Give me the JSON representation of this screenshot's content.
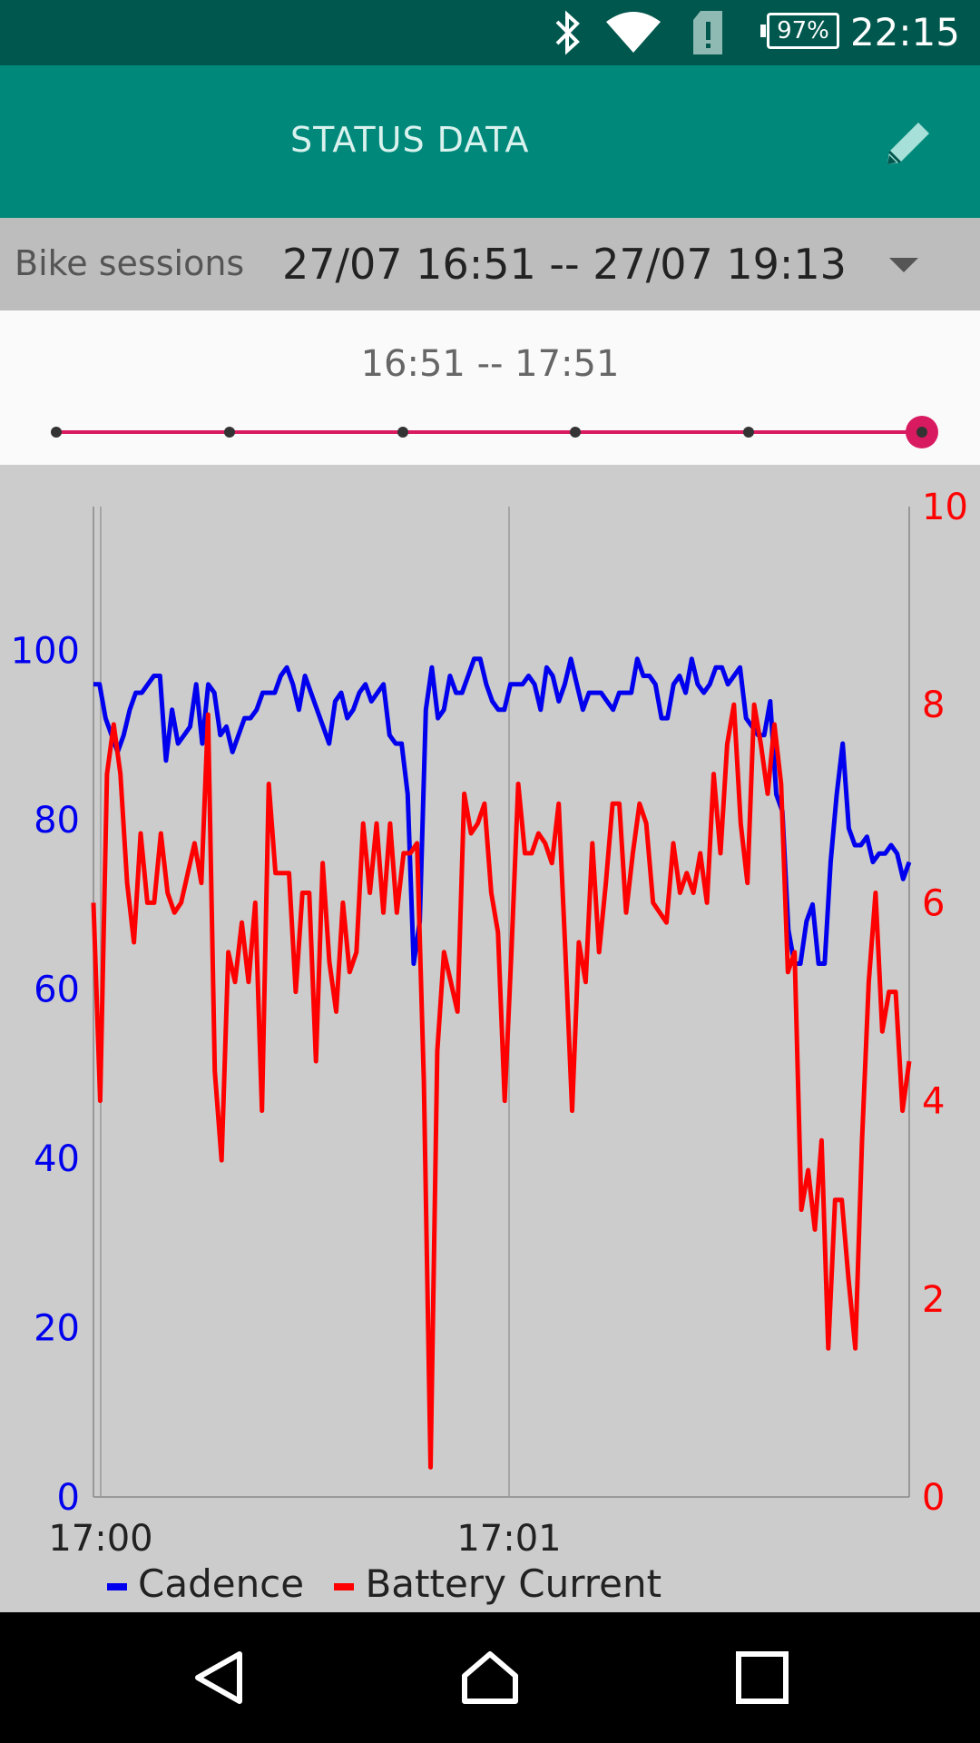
{
  "status_bar": {
    "time": "22:15",
    "battery": "97%",
    "icons": [
      "bluetooth-icon",
      "wifi-icon",
      "sim-alert-icon",
      "battery-icon"
    ]
  },
  "app_bar": {
    "title": "STATUS DATA",
    "edit_icon": "pencil-icon"
  },
  "session_selector": {
    "label": "Bike sessions",
    "value": "27/07 16:51 -- 27/07 19:13"
  },
  "range": {
    "text": "16:51  --  17:51",
    "selected_fraction": 1.0
  },
  "legend": {
    "cadence": "Cadence",
    "battery_current": "Battery Current"
  },
  "colors": {
    "cadence": "#0000ee",
    "battery_current": "#ff0000",
    "accent": "#d81b60",
    "appbar": "#00897b"
  },
  "chart_data": {
    "type": "line",
    "x_ticks": [
      "17:00",
      "17:01"
    ],
    "y_left": {
      "ticks": [
        0,
        20,
        40,
        60,
        80,
        100
      ],
      "range": [
        0,
        117
      ]
    },
    "y_right": {
      "ticks": [
        0,
        2,
        4,
        6,
        8,
        10
      ],
      "range": [
        0,
        10
      ]
    },
    "series": [
      {
        "name": "Cadence",
        "axis": "left",
        "values": [
          96,
          96,
          92,
          90,
          88,
          90,
          93,
          95,
          95,
          96,
          97,
          97,
          87,
          93,
          89,
          90,
          91,
          96,
          89,
          96,
          95,
          90,
          91,
          88,
          90,
          92,
          92,
          93,
          95,
          95,
          95,
          97,
          98,
          96,
          93,
          97,
          95,
          93,
          91,
          89,
          94,
          95,
          92,
          93,
          95,
          96,
          94,
          95,
          96,
          90,
          89,
          89,
          83,
          63,
          68,
          93,
          98,
          92,
          93,
          97,
          95,
          95,
          97,
          99,
          99,
          96,
          94,
          93,
          93,
          96,
          96,
          96,
          97,
          96,
          93,
          98,
          97,
          94,
          96,
          99,
          96,
          93,
          95,
          95,
          95,
          94,
          93,
          95,
          95,
          95,
          99,
          97,
          97,
          96,
          92,
          92,
          96,
          97,
          95,
          99,
          96,
          95,
          96,
          98,
          98,
          96,
          97,
          98,
          92,
          91,
          90,
          90,
          94,
          83,
          81,
          67,
          63,
          63,
          68,
          70,
          63,
          63,
          75,
          83,
          89,
          79,
          77,
          77,
          78,
          75,
          76,
          76,
          77,
          76,
          73,
          75
        ]
      },
      {
        "name": "Battery Current",
        "axis": "right",
        "values": [
          6.0,
          4.0,
          7.3,
          7.8,
          7.3,
          6.2,
          5.6,
          6.7,
          6.0,
          6.0,
          6.7,
          6.1,
          5.9,
          6.0,
          6.3,
          6.6,
          6.2,
          7.9,
          4.3,
          3.4,
          5.5,
          5.2,
          5.8,
          5.2,
          6.0,
          3.9,
          7.2,
          6.3,
          6.3,
          6.3,
          5.1,
          6.1,
          6.1,
          4.4,
          6.4,
          5.4,
          4.9,
          6.0,
          5.3,
          5.5,
          6.8,
          6.1,
          6.8,
          5.9,
          6.8,
          5.9,
          6.5,
          6.5,
          6.6,
          4.2,
          0.3,
          4.5,
          5.5,
          5.2,
          4.9,
          7.1,
          6.7,
          6.8,
          7.0,
          6.1,
          5.7,
          4.0,
          5.5,
          7.2,
          6.5,
          6.5,
          6.7,
          6.6,
          6.4,
          7.0,
          5.5,
          3.9,
          5.6,
          5.2,
          6.6,
          5.5,
          6.2,
          7.0,
          7.0,
          5.9,
          6.5,
          7.0,
          6.8,
          6.0,
          5.9,
          5.8,
          6.6,
          6.1,
          6.3,
          6.1,
          6.5,
          6.0,
          7.3,
          6.5,
          7.6,
          8.0,
          6.8,
          6.2,
          8.0,
          7.6,
          7.1,
          7.8,
          7.2,
          5.3,
          5.5,
          2.9,
          3.3,
          2.7,
          3.6,
          1.5,
          3.0,
          3.0,
          2.2,
          1.5,
          3.6,
          5.2,
          6.1,
          4.7,
          5.1,
          5.1,
          3.9,
          4.4
        ]
      }
    ]
  }
}
